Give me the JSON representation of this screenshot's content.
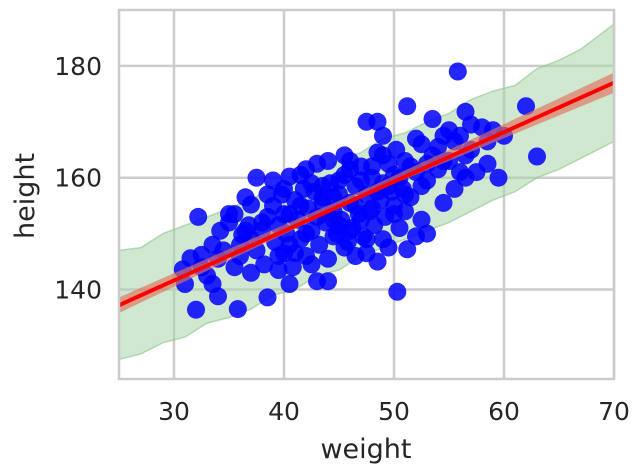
{
  "chart_data": {
    "type": "scatter",
    "title": "",
    "xlabel": "weight",
    "ylabel": "height",
    "xlim": [
      25,
      70
    ],
    "ylim": [
      124,
      190
    ],
    "xticks": [
      30,
      40,
      50,
      60,
      70
    ],
    "yticks": [
      140,
      160,
      180
    ],
    "grid": true,
    "colors": {
      "points": "#0000ff",
      "line": "#ff0000",
      "line_band": "#e07060",
      "prediction_band": "#a8d5a8",
      "grid": "#cccccc",
      "axes": "#cccccc"
    },
    "regression_line": {
      "x": [
        25,
        70
      ],
      "y": [
        137.2,
        177.0
      ]
    },
    "mean_band": {
      "x": [
        25,
        47,
        70
      ],
      "lower": [
        135.8,
        156.5,
        175.2
      ],
      "upper": [
        138.6,
        157.6,
        178.8
      ]
    },
    "prediction_band": {
      "x": [
        25,
        27,
        29,
        31,
        33,
        35,
        37,
        39,
        41,
        43,
        45,
        47,
        49,
        51,
        53,
        55,
        57,
        59,
        61,
        63,
        65,
        67,
        70
      ],
      "lower": [
        127.5,
        128.5,
        130.5,
        131.5,
        134.0,
        135.0,
        136.5,
        139.0,
        140.0,
        142.5,
        143.5,
        146.0,
        147.5,
        149.0,
        150.5,
        152.0,
        154.0,
        156.0,
        157.5,
        160.0,
        161.5,
        163.5,
        166.5
      ],
      "upper": [
        147.0,
        147.5,
        150.0,
        151.5,
        153.0,
        154.5,
        156.0,
        158.5,
        159.5,
        161.5,
        163.0,
        164.5,
        167.0,
        168.0,
        170.0,
        171.5,
        174.0,
        175.5,
        176.5,
        179.5,
        181.0,
        183.0,
        187.5
      ]
    },
    "points": [
      [
        55.8,
        179.0
      ],
      [
        51.2,
        172.8
      ],
      [
        56.5,
        171.8
      ],
      [
        62.0,
        172.8
      ],
      [
        63.0,
        163.8
      ],
      [
        59.5,
        160.0
      ],
      [
        50.3,
        139.6
      ],
      [
        51.2,
        147.2
      ],
      [
        40.5,
        160.2
      ],
      [
        37.5,
        160.0
      ],
      [
        35.8,
        136.5
      ],
      [
        38.5,
        138.6
      ],
      [
        34.0,
        138.8
      ],
      [
        32.0,
        136.4
      ],
      [
        32.2,
        153.0
      ],
      [
        30.8,
        143.6
      ],
      [
        31.5,
        145.6
      ],
      [
        32.5,
        146.2
      ],
      [
        33.5,
        148.0
      ],
      [
        33.0,
        142.5
      ],
      [
        34.2,
        150.5
      ],
      [
        35.0,
        152.0
      ],
      [
        35.5,
        153.5
      ],
      [
        36.0,
        146.0
      ],
      [
        36.2,
        149.8
      ],
      [
        36.8,
        151.5
      ],
      [
        37.0,
        155.2
      ],
      [
        37.5,
        147.0
      ],
      [
        38.0,
        150.6
      ],
      [
        38.2,
        144.5
      ],
      [
        38.5,
        153.0
      ],
      [
        39.0,
        155.0
      ],
      [
        39.2,
        148.5
      ],
      [
        39.5,
        151.5
      ],
      [
        39.8,
        157.0
      ],
      [
        40.0,
        146.5
      ],
      [
        40.2,
        150.0
      ],
      [
        40.5,
        153.5
      ],
      [
        40.8,
        144.0
      ],
      [
        41.0,
        156.0
      ],
      [
        41.2,
        152.5
      ],
      [
        41.5,
        149.0
      ],
      [
        41.8,
        158.0
      ],
      [
        42.0,
        146.0
      ],
      [
        42.2,
        154.5
      ],
      [
        42.5,
        150.5
      ],
      [
        42.8,
        157.5
      ],
      [
        43.0,
        153.0
      ],
      [
        43.2,
        148.0
      ],
      [
        43.5,
        156.5
      ],
      [
        43.8,
        152.0
      ],
      [
        44.0,
        145.5
      ],
      [
        44.2,
        159.0
      ],
      [
        44.5,
        154.0
      ],
      [
        44.8,
        150.0
      ],
      [
        45.0,
        157.0
      ],
      [
        45.2,
        152.5
      ],
      [
        45.5,
        160.5
      ],
      [
        45.8,
        148.5
      ],
      [
        46.0,
        155.5
      ],
      [
        46.2,
        151.0
      ],
      [
        46.5,
        158.5
      ],
      [
        46.8,
        153.5
      ],
      [
        47.0,
        162.0
      ],
      [
        47.2,
        149.5
      ],
      [
        47.5,
        157.0
      ],
      [
        47.8,
        154.0
      ],
      [
        48.0,
        160.0
      ],
      [
        48.2,
        151.5
      ],
      [
        48.5,
        164.5
      ],
      [
        48.8,
        156.0
      ],
      [
        49.0,
        159.0
      ],
      [
        49.2,
        153.0
      ],
      [
        49.5,
        162.5
      ],
      [
        49.8,
        157.5
      ],
      [
        50.0,
        155.0
      ],
      [
        50.2,
        165.0
      ],
      [
        50.5,
        160.0
      ],
      [
        50.8,
        158.0
      ],
      [
        51.0,
        163.0
      ],
      [
        51.5,
        156.5
      ],
      [
        52.0,
        161.0
      ],
      [
        52.5,
        166.0
      ],
      [
        53.0,
        159.5
      ],
      [
        53.5,
        164.0
      ],
      [
        54.0,
        161.5
      ],
      [
        54.5,
        167.5
      ],
      [
        55.0,
        163.0
      ],
      [
        55.5,
        166.5
      ],
      [
        56.0,
        161.0
      ],
      [
        57.0,
        165.0
      ],
      [
        58.0,
        169.0
      ],
      [
        58.5,
        166.5
      ],
      [
        59.0,
        168.5
      ],
      [
        60.0,
        167.5
      ],
      [
        47.5,
        170.0
      ],
      [
        48.5,
        170.0
      ],
      [
        49.0,
        167.5
      ],
      [
        52.0,
        167.0
      ],
      [
        53.5,
        170.5
      ],
      [
        44.0,
        163.0
      ],
      [
        42.0,
        161.5
      ],
      [
        43.0,
        162.5
      ],
      [
        45.5,
        164.0
      ],
      [
        46.0,
        161.5
      ],
      [
        38.5,
        157.0
      ],
      [
        39.0,
        159.5
      ],
      [
        36.5,
        156.5
      ],
      [
        35.0,
        153.5
      ],
      [
        34.5,
        147.0
      ],
      [
        31.0,
        141.0
      ],
      [
        33.5,
        141.0
      ],
      [
        37.0,
        143.0
      ],
      [
        40.5,
        141.0
      ],
      [
        43.0,
        141.5
      ],
      [
        44.0,
        141.5
      ],
      [
        46.5,
        146.0
      ],
      [
        47.5,
        146.5
      ],
      [
        48.5,
        145.0
      ],
      [
        49.5,
        147.5
      ],
      [
        52.0,
        149.5
      ],
      [
        53.0,
        150.0
      ],
      [
        50.5,
        151.0
      ],
      [
        52.5,
        152.5
      ],
      [
        54.5,
        155.5
      ],
      [
        55.5,
        158.0
      ],
      [
        56.5,
        160.0
      ],
      [
        57.5,
        161.0
      ],
      [
        51.0,
        154.0
      ],
      [
        49.0,
        149.0
      ],
      [
        45.5,
        147.5
      ],
      [
        42.5,
        144.5
      ],
      [
        39.5,
        146.0
      ],
      [
        37.0,
        149.0
      ],
      [
        35.5,
        144.0
      ],
      [
        36.5,
        150.5
      ],
      [
        40.0,
        153.5
      ],
      [
        41.5,
        155.0
      ],
      [
        43.5,
        155.5
      ],
      [
        44.5,
        149.5
      ],
      [
        46.0,
        150.5
      ],
      [
        47.0,
        152.5
      ],
      [
        48.0,
        154.5
      ],
      [
        48.5,
        157.5
      ],
      [
        49.5,
        158.5
      ],
      [
        50.0,
        160.5
      ],
      [
        51.5,
        162.0
      ],
      [
        46.5,
        155.0
      ],
      [
        45.0,
        151.5
      ],
      [
        42.0,
        150.0
      ],
      [
        40.5,
        148.0
      ],
      [
        38.0,
        152.0
      ],
      [
        36.0,
        148.0
      ],
      [
        34.0,
        145.5
      ],
      [
        32.5,
        144.0
      ],
      [
        53.0,
        162.5
      ],
      [
        54.0,
        165.5
      ],
      [
        55.0,
        168.5
      ],
      [
        56.0,
        167.5
      ],
      [
        57.0,
        169.5
      ],
      [
        58.5,
        162.5
      ],
      [
        56.5,
        164.0
      ],
      [
        54.5,
        163.0
      ],
      [
        52.5,
        158.5
      ],
      [
        51.0,
        157.0
      ],
      [
        50.0,
        153.5
      ],
      [
        47.5,
        149.0
      ],
      [
        44.5,
        152.5
      ],
      [
        41.0,
        146.5
      ],
      [
        39.5,
        143.5
      ],
      [
        45.0,
        159.5
      ],
      [
        46.0,
        163.0
      ],
      [
        47.0,
        159.5
      ],
      [
        48.0,
        162.0
      ],
      [
        49.0,
        164.0
      ],
      [
        43.5,
        158.5
      ],
      [
        42.5,
        159.0
      ],
      [
        41.5,
        160.5
      ],
      [
        40.0,
        158.0
      ],
      [
        44.5,
        156.5
      ]
    ]
  }
}
